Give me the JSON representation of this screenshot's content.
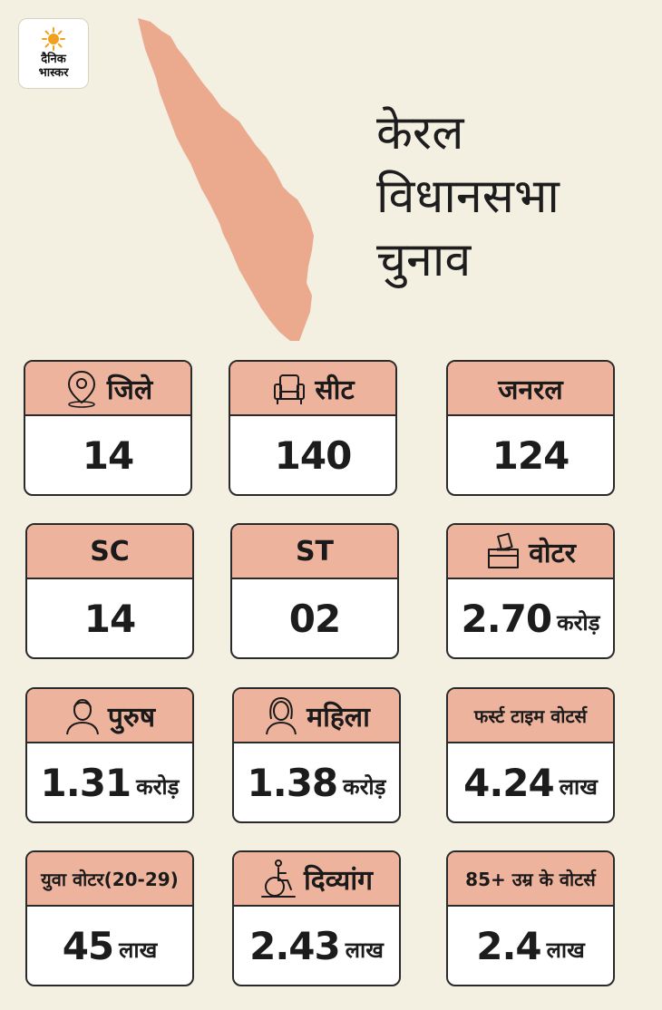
{
  "logo": {
    "line1": "दैनिक",
    "line2": "भास्कर"
  },
  "headline": {
    "line1": "केरल",
    "line2": "विधानसभा",
    "line3": "चुनाव"
  },
  "colors": {
    "background": "#f3efe1",
    "header": "#eeb39d",
    "map": "#eba98e",
    "border": "#2a2a2a"
  },
  "stats": [
    {
      "label": "जिले",
      "icon": "location-pin-icon",
      "value": "14",
      "unit": ""
    },
    {
      "label": "सीट",
      "icon": "armchair-icon",
      "value": "140",
      "unit": ""
    },
    {
      "label": "जनरल",
      "icon": "",
      "value": "124",
      "unit": ""
    },
    {
      "label": "SC",
      "icon": "",
      "value": "14",
      "unit": ""
    },
    {
      "label": "ST",
      "icon": "",
      "value": "02",
      "unit": ""
    },
    {
      "label": "वोटर",
      "icon": "ballot-box-icon",
      "value": "2.70",
      "unit": "करोड़"
    },
    {
      "label": "पुरुष",
      "icon": "man-icon",
      "value": "1.31",
      "unit": "करोड़"
    },
    {
      "label": "महिला",
      "icon": "woman-icon",
      "value": "1.38",
      "unit": "करोड़"
    },
    {
      "label": "फर्स्ट टाइम वोटर्स",
      "icon": "",
      "value": "4.24",
      "unit": "लाख"
    },
    {
      "label": "युवा वोटर(20-29)",
      "icon": "",
      "value": "45",
      "unit": "लाख"
    },
    {
      "label": "दिव्यांग",
      "icon": "wheelchair-icon",
      "value": "2.43",
      "unit": "लाख"
    },
    {
      "label": "85+ उम्र के वोटर्स",
      "icon": "",
      "value": "2.4",
      "unit": "लाख"
    }
  ]
}
